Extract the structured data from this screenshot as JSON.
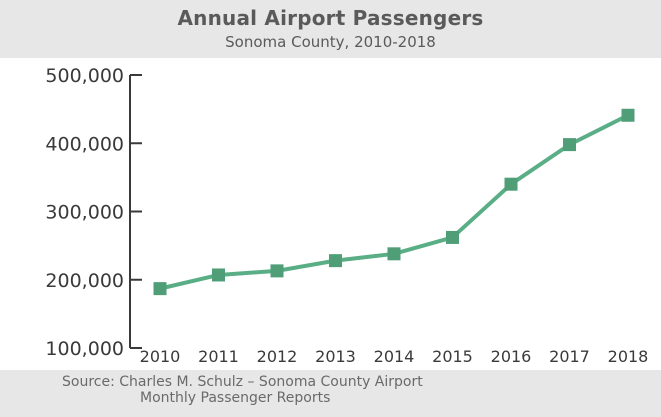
{
  "header": {
    "title": "Annual Airport Passengers",
    "subtitle": "Sonoma County, 2010-2018"
  },
  "footer": {
    "source_line1": "Source: Charles M. Schulz – Sonoma County Airport",
    "source_line2": "Monthly Passenger Reports"
  },
  "colors": {
    "line": "#5aae86",
    "marker": "#4f9e78",
    "header_bg": "#e7e7e7",
    "axis": "#3a3a3a"
  },
  "chart_data": {
    "type": "line",
    "title": "Annual Airport Passengers",
    "subtitle": "Sonoma County, 2010-2018",
    "xlabel": "",
    "ylabel": "",
    "grid": false,
    "legend": "none",
    "categories": [
      "2010",
      "2011",
      "2012",
      "2013",
      "2014",
      "2015",
      "2016",
      "2017",
      "2018"
    ],
    "y_ticks": [
      "500,000",
      "400,000",
      "300,000",
      "200,000",
      "100,000"
    ],
    "y_tick_values": [
      500000,
      400000,
      300000,
      200000,
      100000
    ],
    "ylim": [
      100000,
      500000
    ],
    "series": [
      {
        "values": [
          187000,
          207000,
          213000,
          228000,
          238000,
          262000,
          340000,
          398000,
          441000
        ]
      }
    ]
  }
}
